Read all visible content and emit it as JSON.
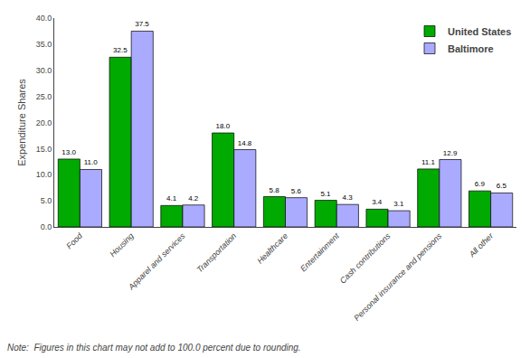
{
  "chart_data": {
    "type": "bar",
    "categories": [
      "Food",
      "Housing",
      "Apparel and services",
      "Transportation",
      "Healthcare",
      "Entertainment",
      "Cash contributions",
      "Personal insurance and pensions",
      "All other"
    ],
    "series": [
      {
        "name": "United States",
        "color": "#00aa00",
        "values": [
          13.0,
          32.5,
          4.1,
          18.0,
          5.8,
          5.1,
          3.4,
          11.1,
          6.9
        ],
        "value_labels": [
          "13.0",
          "32.5",
          "4.1",
          "18.0",
          "5.8",
          "5.1",
          "3.4",
          "11.1",
          "6.9"
        ]
      },
      {
        "name": "Baltimore",
        "color": "#aaaaff",
        "values": [
          11.0,
          37.5,
          4.2,
          14.8,
          5.6,
          4.3,
          3.1,
          12.9,
          6.5
        ],
        "value_labels": [
          "11.0",
          "37.5",
          "4.2",
          "14.8",
          "5.6",
          "4.3",
          "3.1",
          "12.9",
          "6.5"
        ]
      }
    ],
    "ylabel": "Expenditure Shares",
    "ylim": [
      0,
      40.0
    ],
    "yticks": [
      {
        "value": 0,
        "label": "0.0"
      },
      {
        "value": 5,
        "label": "5.0"
      },
      {
        "value": 10,
        "label": "10.0"
      },
      {
        "value": 15,
        "label": "15.0"
      },
      {
        "value": 20,
        "label": "20.0"
      },
      {
        "value": 25,
        "label": "25.0"
      },
      {
        "value": 30,
        "label": "30.0"
      },
      {
        "value": 35,
        "label": "35.0"
      },
      {
        "value": 40,
        "label": "40.0"
      }
    ],
    "annotations": [
      "Note:  Figures in this chart may not add to 100.0 percent due to rounding."
    ],
    "data_labels": true,
    "legend": "upper right",
    "grid": false
  }
}
